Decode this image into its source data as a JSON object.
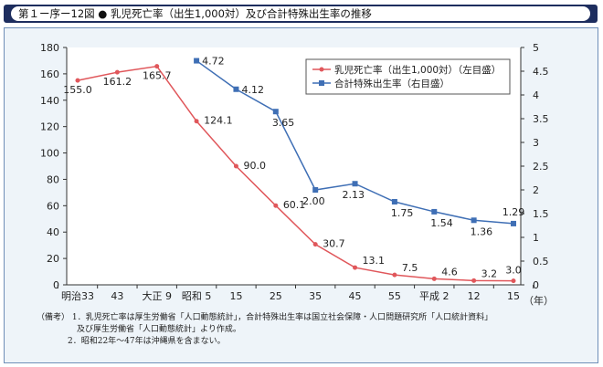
{
  "header": {
    "title": "第１ー序ー12図 ● 乳児死亡率（出生1,000対）及び合計特殊出生率の推移"
  },
  "notes": {
    "label": "（備考）",
    "line1": "1．乳児死亡率は厚生労働省「人口動態統計」，合計特殊出生率は国立社会保障・人口問題研究所「人口統計資料」",
    "line1b": "及び厚生労働省「人口動態統計」より作成。",
    "line2": "2．昭和22年～47年は沖縄県を含まない。"
  },
  "chart_data": {
    "type": "line",
    "categories": [
      "明治33",
      "43",
      "大正 9",
      "昭和 5",
      "15",
      "25",
      "35",
      "45",
      "55",
      "平成 2",
      "12",
      "15"
    ],
    "xunit": "（年）",
    "y_left": {
      "ylim": [
        0,
        180
      ],
      "ticks": [
        "0",
        "20",
        "40",
        "60",
        "80",
        "100",
        "120",
        "140",
        "160",
        "180"
      ]
    },
    "y_right": {
      "ylim": [
        0,
        5
      ],
      "ticks": [
        "0",
        "0.5",
        "1",
        "1.5",
        "2",
        "2.5",
        "3",
        "3.5",
        "4",
        "4.5",
        "5"
      ]
    },
    "series": [
      {
        "name": "乳児死亡率（出生1,000対）（左目盛）",
        "axis": "left",
        "color": "#e0575b",
        "values": [
          155.0,
          161.2,
          165.7,
          124.1,
          90.0,
          60.1,
          30.7,
          13.1,
          7.5,
          4.6,
          3.2,
          3.0
        ],
        "labels": [
          "155.0",
          "161.2",
          "165.7",
          "124.1",
          "90.0",
          "60.1",
          "30.7",
          "13.1",
          "7.5",
          "4.6",
          "3.2",
          "3.0"
        ]
      },
      {
        "name": "合計特殊出生率（右目盛）",
        "axis": "right",
        "color": "#3f6fb5",
        "values": [
          null,
          null,
          null,
          4.72,
          4.12,
          3.65,
          2.0,
          2.13,
          1.75,
          1.54,
          1.36,
          1.29
        ],
        "labels": [
          null,
          null,
          null,
          "4.72",
          "4.12",
          "3.65",
          "2.00",
          "2.13",
          "1.75",
          "1.54",
          "1.36",
          "1.29"
        ]
      }
    ],
    "legend": "top-right"
  }
}
